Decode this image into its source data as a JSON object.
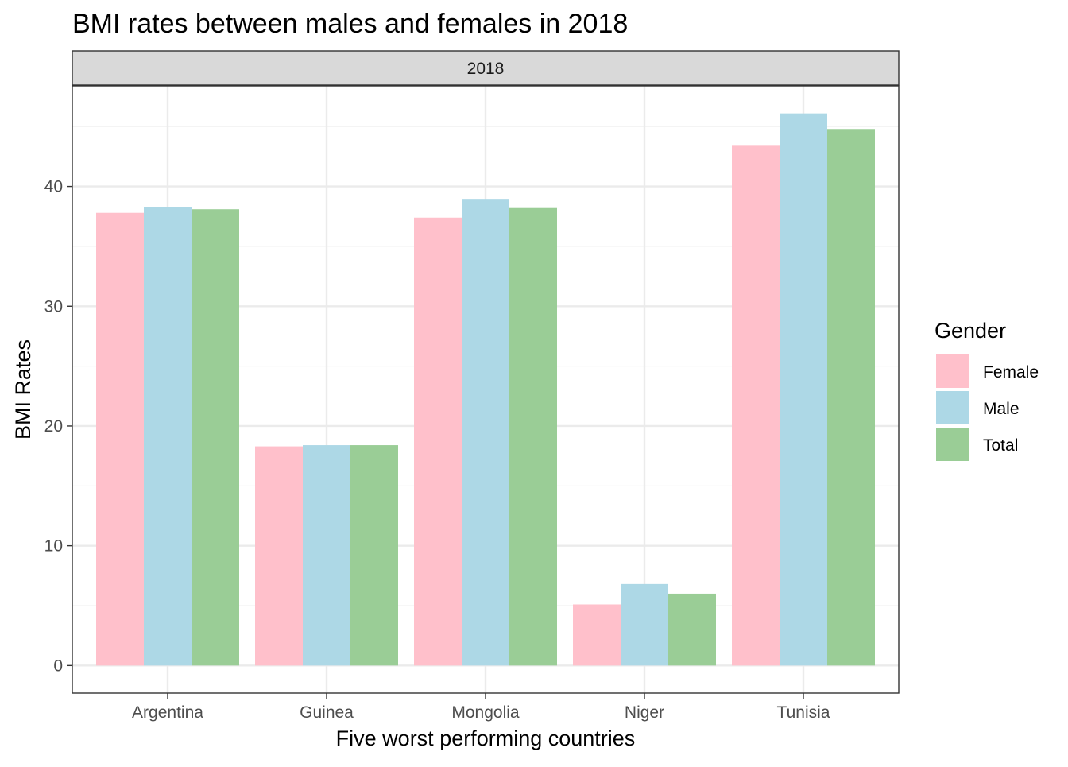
{
  "chart_data": {
    "type": "bar",
    "title": "BMI rates between males and females in 2018",
    "facet": "2018",
    "xlabel": "Five worst performing countries",
    "ylabel": "BMI Rates",
    "categories": [
      "Argentina",
      "Guinea",
      "Mongolia",
      "Niger",
      "Tunisia"
    ],
    "series": [
      {
        "name": "Female",
        "color": "#FFC0CB",
        "values": [
          37.8,
          18.3,
          37.4,
          5.1,
          43.4
        ]
      },
      {
        "name": "Male",
        "color": "#ADD8E6",
        "values": [
          38.3,
          18.4,
          38.9,
          6.8,
          46.1
        ]
      },
      {
        "name": "Total",
        "color": "#9ACD96",
        "values": [
          38.1,
          18.4,
          38.2,
          6.0,
          44.8
        ]
      }
    ],
    "yticks": [
      0,
      10,
      20,
      30,
      40
    ],
    "ylim": [
      -2.3,
      48.4
    ],
    "legend": {
      "title": "Gender",
      "position": "right"
    },
    "grid": true
  }
}
